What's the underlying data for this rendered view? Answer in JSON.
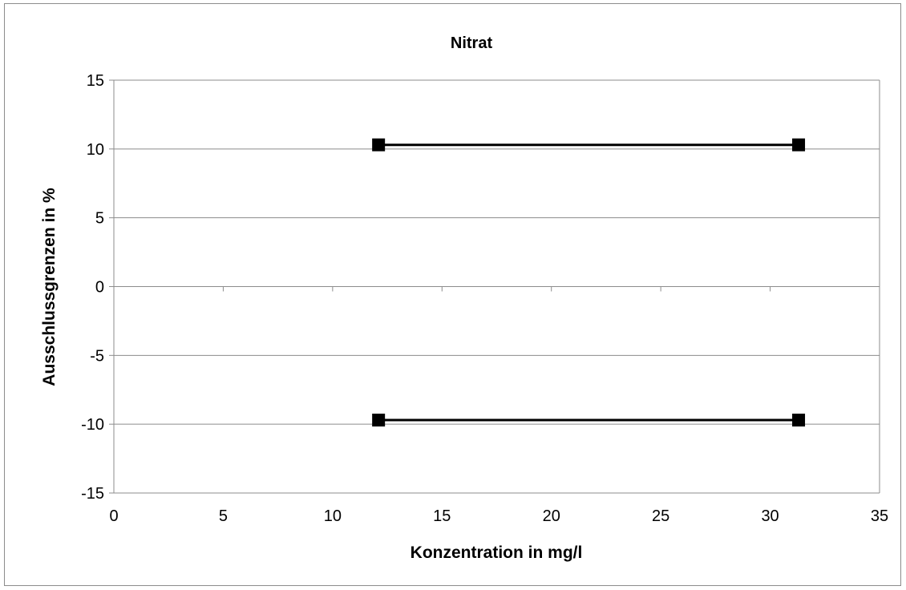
{
  "chart_data": {
    "type": "line",
    "title": "Nitrat",
    "xlabel": "Konzentration in mg/l",
    "ylabel": "Ausschlussgrenzen in %",
    "xlim": [
      0,
      35
    ],
    "ylim": [
      -15,
      15
    ],
    "xticks": [
      0,
      5,
      10,
      15,
      20,
      25,
      30,
      35
    ],
    "yticks": [
      15,
      10,
      5,
      0,
      -5,
      -10,
      -15
    ],
    "grid": "horizontal",
    "legend": "none",
    "series_color": "#000000",
    "series": [
      {
        "x": [
          12.1,
          31.3
        ],
        "y": [
          10.3,
          10.3
        ]
      },
      {
        "x": [
          12.1,
          31.3
        ],
        "y": [
          -9.7,
          -9.7
        ]
      }
    ]
  }
}
